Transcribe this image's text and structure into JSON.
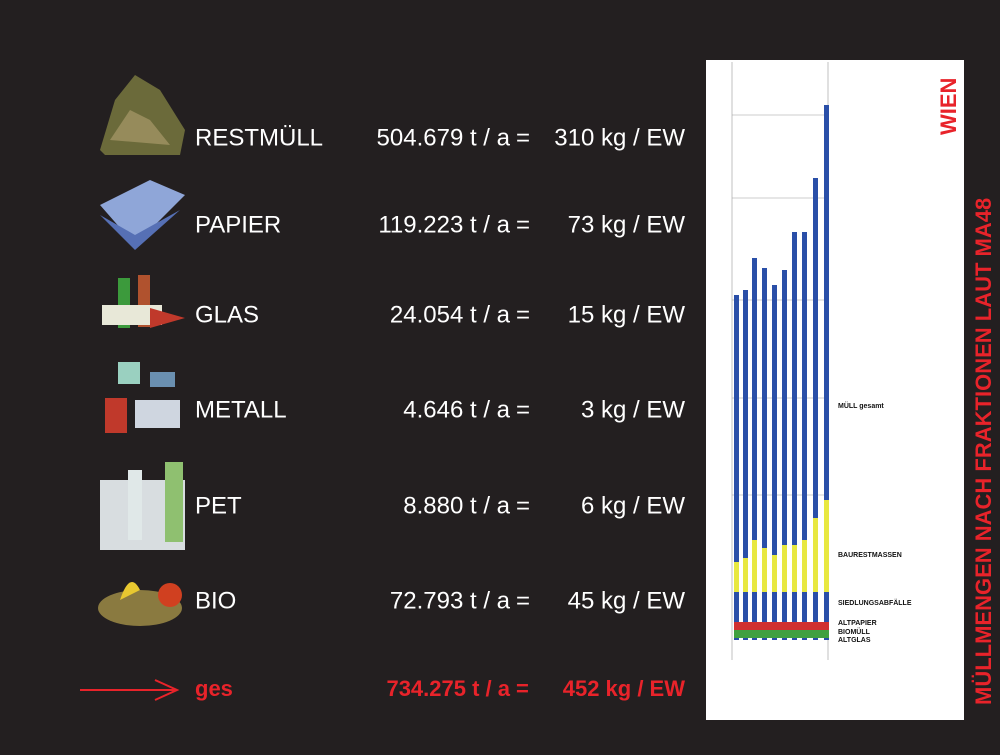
{
  "rows": [
    {
      "label": "RESTMÜLL",
      "amount": "504.679 t / a",
      "per_capita": "310 kg / EW"
    },
    {
      "label": "PAPIER",
      "amount": "119.223 t / a",
      "per_capita": "73 kg / EW"
    },
    {
      "label": "GLAS",
      "amount": "24.054 t / a",
      "per_capita": "15 kg / EW"
    },
    {
      "label": "METALL",
      "amount": "4.646 t / a",
      "per_capita": "3 kg / EW"
    },
    {
      "label": "PET",
      "amount": "8.880 t / a",
      "per_capita": "6 kg / EW"
    },
    {
      "label": "BIO",
      "amount": "72.793 t / a",
      "per_capita": "45 kg / EW"
    }
  ],
  "equals": "=",
  "total": {
    "label": "ges",
    "amount": "734.275 t / a",
    "per_capita": "452 kg / EW"
  },
  "side_title": "MÜLLMENGEN NACH FRAKTIONEN LAUT MA48",
  "side_city": "WIEN",
  "chart_labels": [
    "MÜLL gesamt",
    "BAURESTMASSEN",
    "SIEDLUNGSABFÄLLE",
    "ALTPAPIER",
    "BIOMÜLL",
    "ALTGLAS"
  ]
}
